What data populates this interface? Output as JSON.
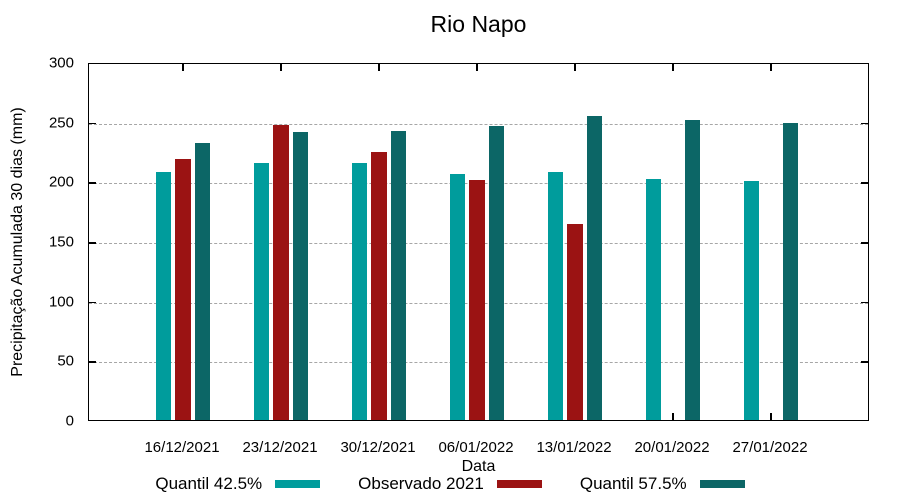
{
  "chart_data": {
    "type": "bar",
    "title": "Rio Napo",
    "xlabel": "Data",
    "ylabel": "Precipitação Acumulada 30 dias (mm)",
    "ylim": [
      0,
      300
    ],
    "yticks": [
      0,
      50,
      100,
      150,
      200,
      250,
      300
    ],
    "grid": "horizontal-dashed",
    "legend_position": "bottom-center",
    "categories": [
      "16/12/2021",
      "23/12/2021",
      "30/12/2021",
      "06/01/2022",
      "13/01/2022",
      "20/01/2022",
      "27/01/2022"
    ],
    "series": [
      {
        "name": "Quantil 42.5%",
        "color": "#009c9c",
        "values": [
          208,
          215,
          215,
          206,
          208,
          202,
          200
        ]
      },
      {
        "name": "Observado 2021",
        "color": "#9b1313",
        "values": [
          219,
          247,
          225,
          201,
          164,
          null,
          null
        ]
      },
      {
        "name": "Quantil 57.5%",
        "color": "#0c6666",
        "values": [
          232,
          241,
          242,
          246,
          255,
          251,
          249
        ]
      }
    ]
  }
}
